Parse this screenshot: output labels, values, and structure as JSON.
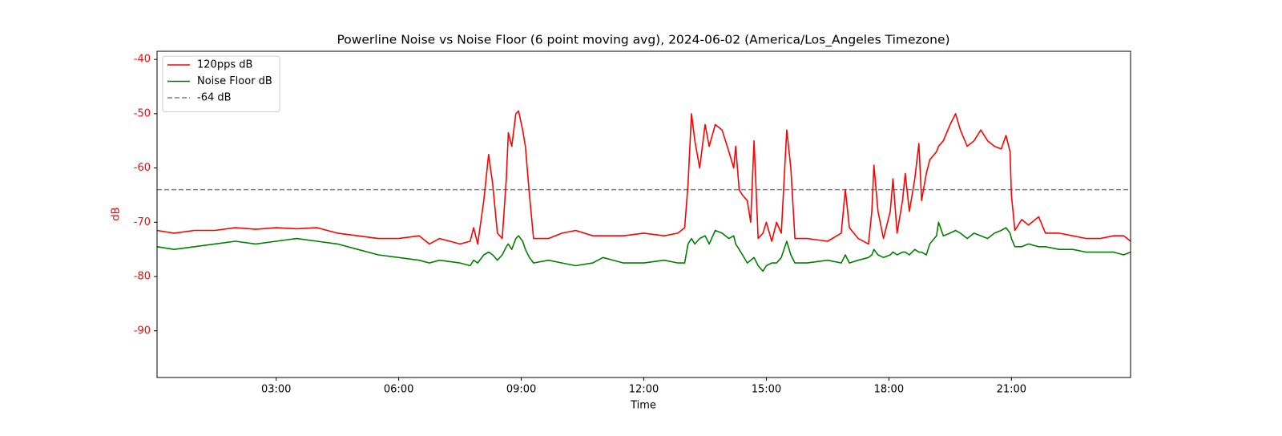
{
  "chart_data": {
    "type": "line",
    "title": "Powerline Noise vs Noise Floor (6 point moving avg), 2024-06-02 (America/Los_Angeles Timezone)",
    "xlabel": "Time",
    "ylabel": "dB",
    "x": [
      "00:05",
      "00:30",
      "01:00",
      "01:30",
      "02:00",
      "02:30",
      "03:00",
      "03:30",
      "04:00",
      "04:30",
      "05:00",
      "05:30",
      "06:00",
      "06:30",
      "06:45",
      "07:00",
      "07:30",
      "07:45",
      "07:50",
      "07:56",
      "08:05",
      "08:12",
      "08:18",
      "08:25",
      "08:32",
      "08:38",
      "08:41",
      "08:46",
      "08:52",
      "08:56",
      "09:02",
      "09:06",
      "09:12",
      "09:18",
      "09:40",
      "10:00",
      "10:20",
      "10:45",
      "11:00",
      "11:30",
      "12:00",
      "12:30",
      "12:50",
      "13:00",
      "13:05",
      "13:10",
      "13:15",
      "13:22",
      "13:30",
      "13:36",
      "13:45",
      "13:55",
      "14:05",
      "14:12",
      "14:15",
      "14:20",
      "14:25",
      "14:32",
      "14:37",
      "14:42",
      "14:48",
      "14:55",
      "15:00",
      "15:08",
      "15:15",
      "15:22",
      "15:30",
      "15:36",
      "15:42",
      "16:00",
      "16:30",
      "16:50",
      "16:56",
      "17:02",
      "17:15",
      "17:30",
      "17:35",
      "17:38",
      "17:44",
      "17:52",
      "18:02",
      "18:06",
      "18:12",
      "18:20",
      "18:24",
      "18:30",
      "18:38",
      "18:44",
      "18:48",
      "18:55",
      "19:00",
      "19:10",
      "19:13",
      "19:20",
      "19:30",
      "19:38",
      "19:45",
      "19:55",
      "20:05",
      "20:15",
      "20:25",
      "20:35",
      "20:45",
      "20:52",
      "20:58",
      "21:00",
      "21:05",
      "21:15",
      "21:25",
      "21:40",
      "21:50",
      "22:10",
      "22:30",
      "22:50",
      "23:10",
      "23:30",
      "23:45",
      "23:55"
    ],
    "series": [
      {
        "name": "120pps dB",
        "color": "#ff0000",
        "values": [
          -71.5,
          -72,
          -71.5,
          -71.5,
          -71,
          -71.3,
          -71,
          -71.2,
          -71,
          -72,
          -72.5,
          -73,
          -73,
          -72.5,
          -74,
          -73,
          -74,
          -73.5,
          -71,
          -74,
          -66,
          -57.5,
          -63,
          -72,
          -73,
          -62,
          -53.5,
          -56,
          -50,
          -49.5,
          -53,
          -56,
          -65,
          -73,
          -73,
          -72,
          -71.5,
          -72.5,
          -72.5,
          -72.5,
          -72,
          -72.5,
          -72,
          -71,
          -63,
          -50,
          -55,
          -60,
          -52,
          -56,
          -52,
          -53,
          -57,
          -60,
          -56,
          -64,
          -65,
          -66,
          -70,
          -55,
          -73,
          -72,
          -70,
          -73.5,
          -70,
          -72,
          -53,
          -60,
          -73,
          -73,
          -73.5,
          -72,
          -64,
          -71,
          -73,
          -74,
          -68,
          -59.5,
          -68,
          -73,
          -68,
          -62,
          -72,
          -66,
          -61,
          -68,
          -62,
          -55.5,
          -66,
          -61,
          -58.5,
          -57,
          -56,
          -55,
          -52,
          -50,
          -53,
          -56,
          -55,
          -53,
          -55,
          -56,
          -56.5,
          -54,
          -57,
          -65,
          -71.5,
          -69.5,
          -70.5,
          -69,
          -72,
          -72,
          -72.5,
          -73,
          -73,
          -72.5,
          -72.5,
          -73.5
        ]
      },
      {
        "name": "Noise Floor dB",
        "color": "#008000",
        "values": [
          -74.5,
          -75,
          -74.5,
          -74,
          -73.5,
          -74,
          -73.5,
          -73,
          -73.5,
          -74,
          -75,
          -76,
          -76.5,
          -77,
          -77.5,
          -77,
          -77.5,
          -78,
          -77,
          -77.5,
          -76,
          -75.5,
          -76,
          -77,
          -76,
          -74.5,
          -74,
          -75,
          -73,
          -72.5,
          -73.5,
          -75,
          -76.5,
          -77.5,
          -77,
          -77.5,
          -78,
          -77.5,
          -76.5,
          -77.5,
          -77.5,
          -77,
          -77.5,
          -77.5,
          -74,
          -73,
          -74,
          -73,
          -72.5,
          -74,
          -71.5,
          -72,
          -73,
          -72.5,
          -74,
          -75,
          -76,
          -77.5,
          -77,
          -76.5,
          -78,
          -79,
          -78,
          -77.5,
          -77.5,
          -76.5,
          -73.5,
          -76,
          -77.5,
          -77.5,
          -77,
          -77.5,
          -76,
          -77.5,
          -77,
          -76.5,
          -76,
          -75,
          -76,
          -76.5,
          -76,
          -75.5,
          -76,
          -75.5,
          -75.5,
          -76,
          -75,
          -75.5,
          -75.5,
          -76,
          -74,
          -72.5,
          -70,
          -72.5,
          -72,
          -71.5,
          -72,
          -73,
          -72,
          -72.5,
          -73,
          -72,
          -71.5,
          -71,
          -72,
          -73,
          -74.5,
          -74.5,
          -74,
          -74.5,
          -74.5,
          -75,
          -75,
          -75.5,
          -75.5,
          -75.5,
          -76,
          -75.5
        ]
      }
    ],
    "reference_line": {
      "name": "-64 dB",
      "value": -64,
      "color": "#808080"
    },
    "xlim": [
      "00:05",
      "23:55"
    ],
    "xticks": [
      "03:00",
      "06:00",
      "09:00",
      "12:00",
      "15:00",
      "18:00",
      "21:00"
    ],
    "ylim": [
      -98.6,
      -38.5
    ],
    "yticks": [
      -40,
      -50,
      -60,
      -70,
      -80,
      -90
    ],
    "ytick_color": "#ff0000",
    "legend": "upper left"
  }
}
